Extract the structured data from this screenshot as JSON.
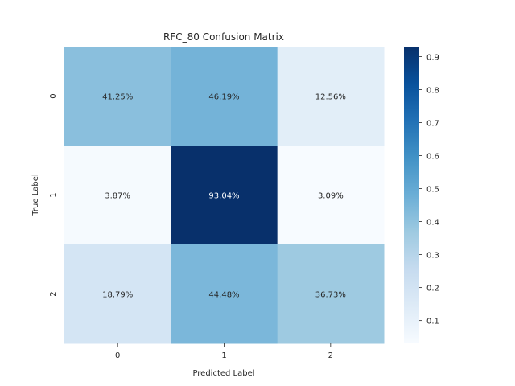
{
  "chart_data": {
    "type": "heatmap",
    "title": "RFC_80 Confusion Matrix",
    "xlabel": "Predicted Label",
    "ylabel": "True Label",
    "x_categories": [
      "0",
      "1",
      "2"
    ],
    "y_categories": [
      "0",
      "1",
      "2"
    ],
    "values": [
      [
        0.4125,
        0.4619,
        0.1256
      ],
      [
        0.0387,
        0.9304,
        0.0309
      ],
      [
        0.1879,
        0.4448,
        0.3673
      ]
    ],
    "annotations": [
      [
        "41.25%",
        "46.19%",
        "12.56%"
      ],
      [
        "3.87%",
        "93.04%",
        "3.09%"
      ],
      [
        "18.79%",
        "44.48%",
        "36.73%"
      ]
    ],
    "colormap": "Blues",
    "colorbar": {
      "range": [
        0.0309,
        0.9304
      ],
      "ticks": [
        0.1,
        0.2,
        0.3,
        0.4,
        0.5,
        0.6,
        0.7,
        0.8,
        0.9
      ],
      "tick_labels": [
        "0.1",
        "0.2",
        "0.3",
        "0.4",
        "0.5",
        "0.6",
        "0.7",
        "0.8",
        "0.9"
      ]
    }
  }
}
